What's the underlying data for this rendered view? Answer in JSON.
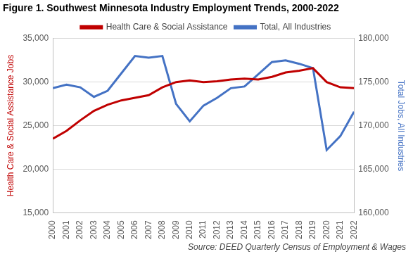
{
  "chart_data": {
    "type": "line",
    "title": "Figure 1. Southwest Minnesota Industry Employment Trends, 2000-2022",
    "source": "Source: DEED Quarterly Census of Employment & Wages",
    "y_label": "Health Care & Social Assistance Jobs",
    "y2_label": "Total Jobs, All Industries",
    "categories": [
      "2000",
      "2001",
      "2002",
      "2003",
      "2004",
      "2005",
      "2006",
      "2007",
      "2008",
      "2009",
      "2010",
      "2011",
      "2012",
      "2013",
      "2014",
      "2015",
      "2016",
      "2017",
      "2018",
      "2019",
      "2020",
      "2021",
      "2022"
    ],
    "series": [
      {
        "name": "Health Care & Social Assistance",
        "color": "#c00000",
        "axis": "y",
        "values": [
          23500,
          24400,
          25600,
          26700,
          27400,
          27900,
          28200,
          28500,
          29400,
          30000,
          30200,
          30000,
          30100,
          30300,
          30400,
          30300,
          30600,
          31100,
          31300,
          31600,
          30000,
          29400,
          29300
        ]
      },
      {
        "name": "Total, All Industries",
        "color": "#4472c4",
        "axis": "y2",
        "values": [
          174300,
          174700,
          174400,
          173300,
          174000,
          176000,
          178000,
          177800,
          178000,
          172500,
          170500,
          172300,
          173200,
          174300,
          174500,
          175900,
          177300,
          177500,
          177100,
          176600,
          167200,
          168800,
          171600
        ]
      }
    ],
    "ylim": [
      15000,
      35000
    ],
    "yticks": [
      {
        "value": 15000,
        "label": "15,000"
      },
      {
        "value": 20000,
        "label": "20,000"
      },
      {
        "value": 25000,
        "label": "25,000"
      },
      {
        "value": 30000,
        "label": "30,000"
      },
      {
        "value": 35000,
        "label": "35,000"
      }
    ],
    "y2lim": [
      160000,
      180000
    ],
    "y2ticks": [
      {
        "value": 160000,
        "label": "160,000"
      },
      {
        "value": 165000,
        "label": "165,000"
      },
      {
        "value": 170000,
        "label": "170,000"
      },
      {
        "value": 175000,
        "label": "175,000"
      },
      {
        "value": 180000,
        "label": "180,000"
      }
    ],
    "grid": true,
    "legend": "top"
  }
}
